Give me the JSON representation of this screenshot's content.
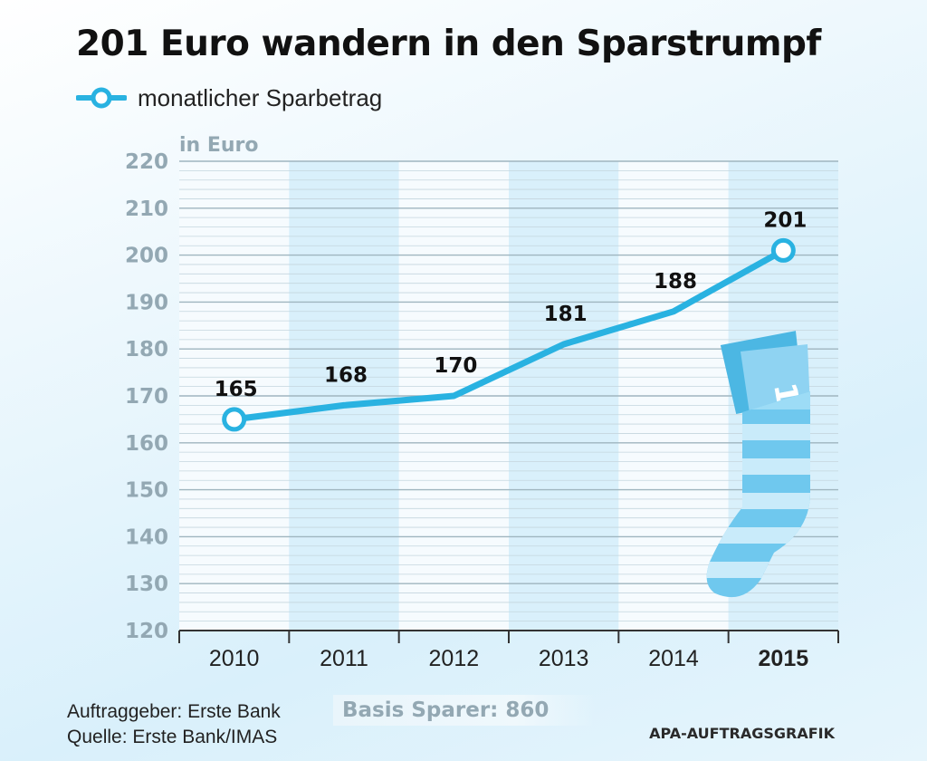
{
  "chart_data": {
    "type": "line",
    "title": "201 Euro wandern in den Sparstrumpf",
    "ylabel": "in Euro",
    "categories": [
      "2010",
      "2011",
      "2012",
      "2013",
      "2014",
      "2015"
    ],
    "highlight_category": "2015",
    "series": [
      {
        "name": "monatlicher Sparbetrag",
        "values": [
          165,
          168,
          170,
          181,
          188,
          201
        ]
      }
    ],
    "data_labels": [
      "165",
      "168",
      "170",
      "181",
      "188",
      "201"
    ],
    "ylim": [
      120,
      220
    ],
    "yticks": [
      "120",
      "130",
      "140",
      "150",
      "160",
      "170",
      "180",
      "190",
      "200",
      "210",
      "220"
    ],
    "legend_position": "top-left",
    "grid": true,
    "line_color": "#29b2e1"
  },
  "footer": {
    "client": "Auftraggeber: Erste Bank",
    "source": "Quelle: Erste Bank/IMAS",
    "basis": "Basis Sparer: 860",
    "credit": "APA-AUFTRAGSGRAFIK"
  },
  "illustration": {
    "icon": "sock-with-banknote-icon",
    "banknote_text": "10"
  }
}
